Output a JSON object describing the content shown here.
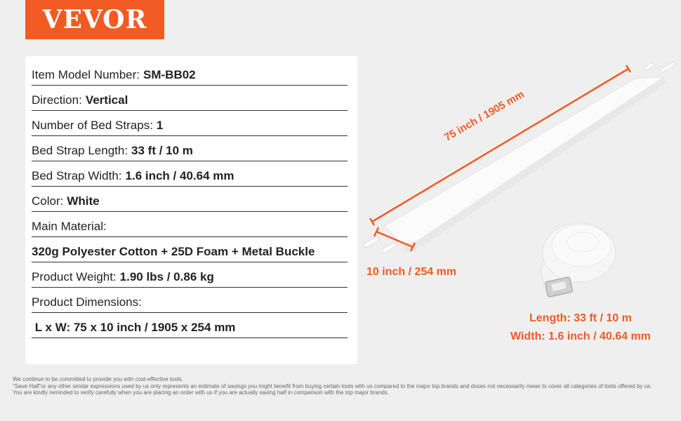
{
  "brand": {
    "logo_text": "VEVOR",
    "accent": "#f15a22"
  },
  "specs": [
    {
      "label": "Item Model Number:",
      "value": "SM-BB02"
    },
    {
      "label": "Direction:",
      "value": "Vertical"
    },
    {
      "label": "Number of Bed Straps:",
      "value": "1"
    },
    {
      "label": "Bed Strap Length:",
      "value": "33 ft / 10 m"
    },
    {
      "label": "Bed Strap Width:",
      "value": "1.6 inch / 40.64 mm"
    },
    {
      "label": "Color:",
      "value": "White"
    },
    {
      "label": "Main Material:",
      "value": ""
    },
    {
      "label": "",
      "value": "320g Polyester Cotton + 25D Foam + Metal Buckle"
    },
    {
      "label": "Product Weight:",
      "value": "1.90 lbs / 0.86 kg"
    },
    {
      "label": "Product Dimensions:",
      "value": ""
    },
    {
      "label": "",
      "value": " L x W: 75 x 10 inch / 1905 x 254 mm"
    }
  ],
  "image": {
    "length_dim": "75 inch / 1905 mm",
    "width_dim": "10 inch / 254 mm",
    "roll_length": "Length: 33 ft / 10 m",
    "roll_width": "Width: 1.6 inch / 40.64 mm"
  },
  "footer": [
    "We continue to be committed to provide you with cost-effective tools.",
    "\"Save Half\"or any other similar expressions used by us only represents an estimate of savings you might benefit from buying certain tools with us compared to the major top brands and doses not necessarily mean to cover all categories of tools offered by us.",
    "You are kindly reminded to verify carefully when you are placing an order with us if you are actually saving half in comparison with the top major brands."
  ]
}
